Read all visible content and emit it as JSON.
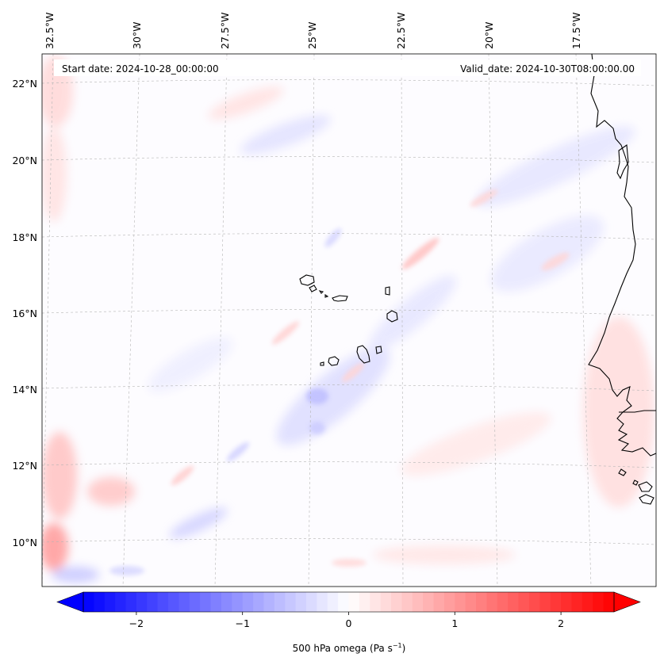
{
  "map": {
    "start_date_text": "Start date: 2024-10-28_00:00:00",
    "valid_date_text": "Valid_date: 2024-10-30T08:00:00.00",
    "lon_labels": [
      "32.5°W",
      "30°W",
      "27.5°W",
      "25°W",
      "22.5°W",
      "20°W",
      "17.5°W"
    ],
    "lat_labels": [
      "22°N",
      "20°N",
      "18°N",
      "16°N",
      "14°N",
      "12°N",
      "10°N"
    ],
    "extent": {
      "lon_min": -33,
      "lon_max": -15.5,
      "lat_min": 8.8,
      "lat_max": 22.8
    },
    "field": "500 hPa omega",
    "island_group": "Cabo Verde",
    "coastline": "West Africa (Mauritania, Senegal, Gambia, Guinea-Bissau)"
  },
  "colorbar": {
    "label": "500 hPa omega (Pa s",
    "label_exp": "−1",
    "label_close": ")",
    "ticks": [
      -2,
      -1,
      0,
      1,
      2
    ],
    "tick_labels": [
      "−2",
      "−1",
      "0",
      "1",
      "2"
    ],
    "vmin": -2.5,
    "vmax": 2.5,
    "cmap": "bwr",
    "extend": "both",
    "min_color": "#0000ff",
    "mid_color": "#ffffff",
    "max_color": "#ff0000"
  }
}
